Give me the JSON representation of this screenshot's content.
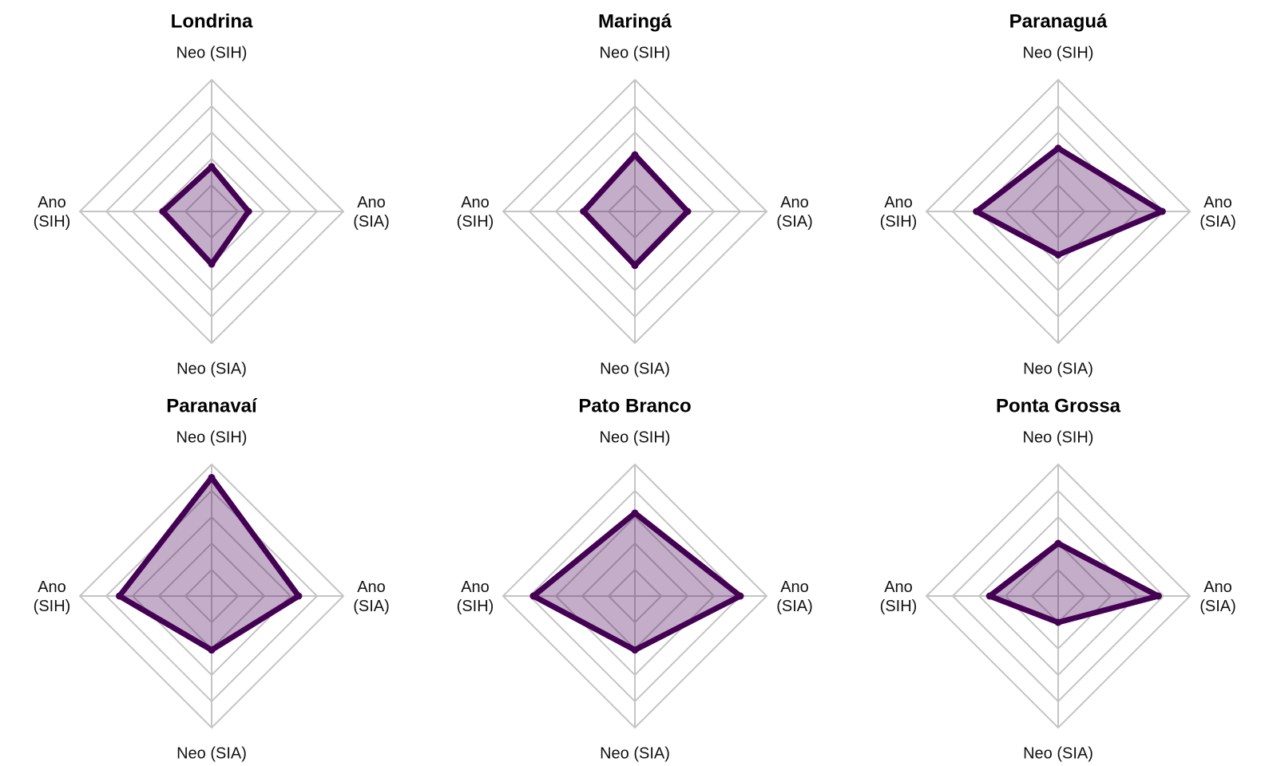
{
  "chart_data": [
    {
      "type": "radar",
      "title": "Londrina",
      "axes": [
        "Neo (SIH)",
        "Ano (SIA)",
        "Neo (SIA)",
        "Ano (SIH)"
      ],
      "axis_labels": [
        [
          "Neo (SIH)"
        ],
        [
          "Ano",
          "(SIA)"
        ],
        [
          "Neo (SIA)"
        ],
        [
          "Ano",
          "(SIH)"
        ]
      ],
      "values": [
        0.34,
        0.28,
        0.4,
        0.37
      ],
      "range": [
        0,
        1
      ],
      "gridlines": 5
    },
    {
      "type": "radar",
      "title": "Maringá",
      "axes": [
        "Neo (SIH)",
        "Ano (SIA)",
        "Neo (SIA)",
        "Ano (SIH)"
      ],
      "axis_labels": [
        [
          "Neo (SIH)"
        ],
        [
          "Ano",
          "(SIA)"
        ],
        [
          "Neo (SIA)"
        ],
        [
          "Ano",
          "(SIH)"
        ]
      ],
      "values": [
        0.43,
        0.4,
        0.41,
        0.39
      ],
      "range": [
        0,
        1
      ],
      "gridlines": 5
    },
    {
      "type": "radar",
      "title": "Paranaguá",
      "axes": [
        "Neo (SIH)",
        "Ano (SIA)",
        "Neo (SIA)",
        "Ano (SIH)"
      ],
      "axis_labels": [
        [
          "Neo (SIH)"
        ],
        [
          "Ano",
          "(SIA)"
        ],
        [
          "Neo (SIA)"
        ],
        [
          "Ano",
          "(SIH)"
        ]
      ],
      "values": [
        0.48,
        0.79,
        0.33,
        0.62
      ],
      "range": [
        0,
        1
      ],
      "gridlines": 5
    },
    {
      "type": "radar",
      "title": "Paranavaí",
      "axes": [
        "Neo (SIH)",
        "Ano (SIA)",
        "Neo (SIA)",
        "Ano (SIH)"
      ],
      "axis_labels": [
        [
          "Neo (SIH)"
        ],
        [
          "Ano",
          "(SIA)"
        ],
        [
          "Neo (SIA)"
        ],
        [
          "Ano",
          "(SIH)"
        ]
      ],
      "values": [
        0.9,
        0.66,
        0.41,
        0.7
      ],
      "range": [
        0,
        1
      ],
      "gridlines": 5
    },
    {
      "type": "radar",
      "title": "Pato Branco",
      "axes": [
        "Neo (SIH)",
        "Ano (SIA)",
        "Neo (SIA)",
        "Ano (SIH)"
      ],
      "axis_labels": [
        [
          "Neo (SIH)"
        ],
        [
          "Ano",
          "(SIA)"
        ],
        [
          "Neo (SIA)"
        ],
        [
          "Ano",
          "(SIH)"
        ]
      ],
      "values": [
        0.63,
        0.8,
        0.41,
        0.77
      ],
      "range": [
        0,
        1
      ],
      "gridlines": 5
    },
    {
      "type": "radar",
      "title": "Ponta Grossa",
      "axes": [
        "Neo (SIH)",
        "Ano (SIA)",
        "Neo (SIA)",
        "Ano (SIH)"
      ],
      "axis_labels": [
        [
          "Neo (SIH)"
        ],
        [
          "Ano",
          "(SIA)"
        ],
        [
          "Neo (SIA)"
        ],
        [
          "Ano",
          "(SIH)"
        ]
      ],
      "values": [
        0.4,
        0.76,
        0.2,
        0.52
      ],
      "range": [
        0,
        1
      ],
      "gridlines": 5
    }
  ],
  "colors": {
    "series_line": "#440154",
    "series_fill": "#440154",
    "grid": "#c4c4c4"
  }
}
